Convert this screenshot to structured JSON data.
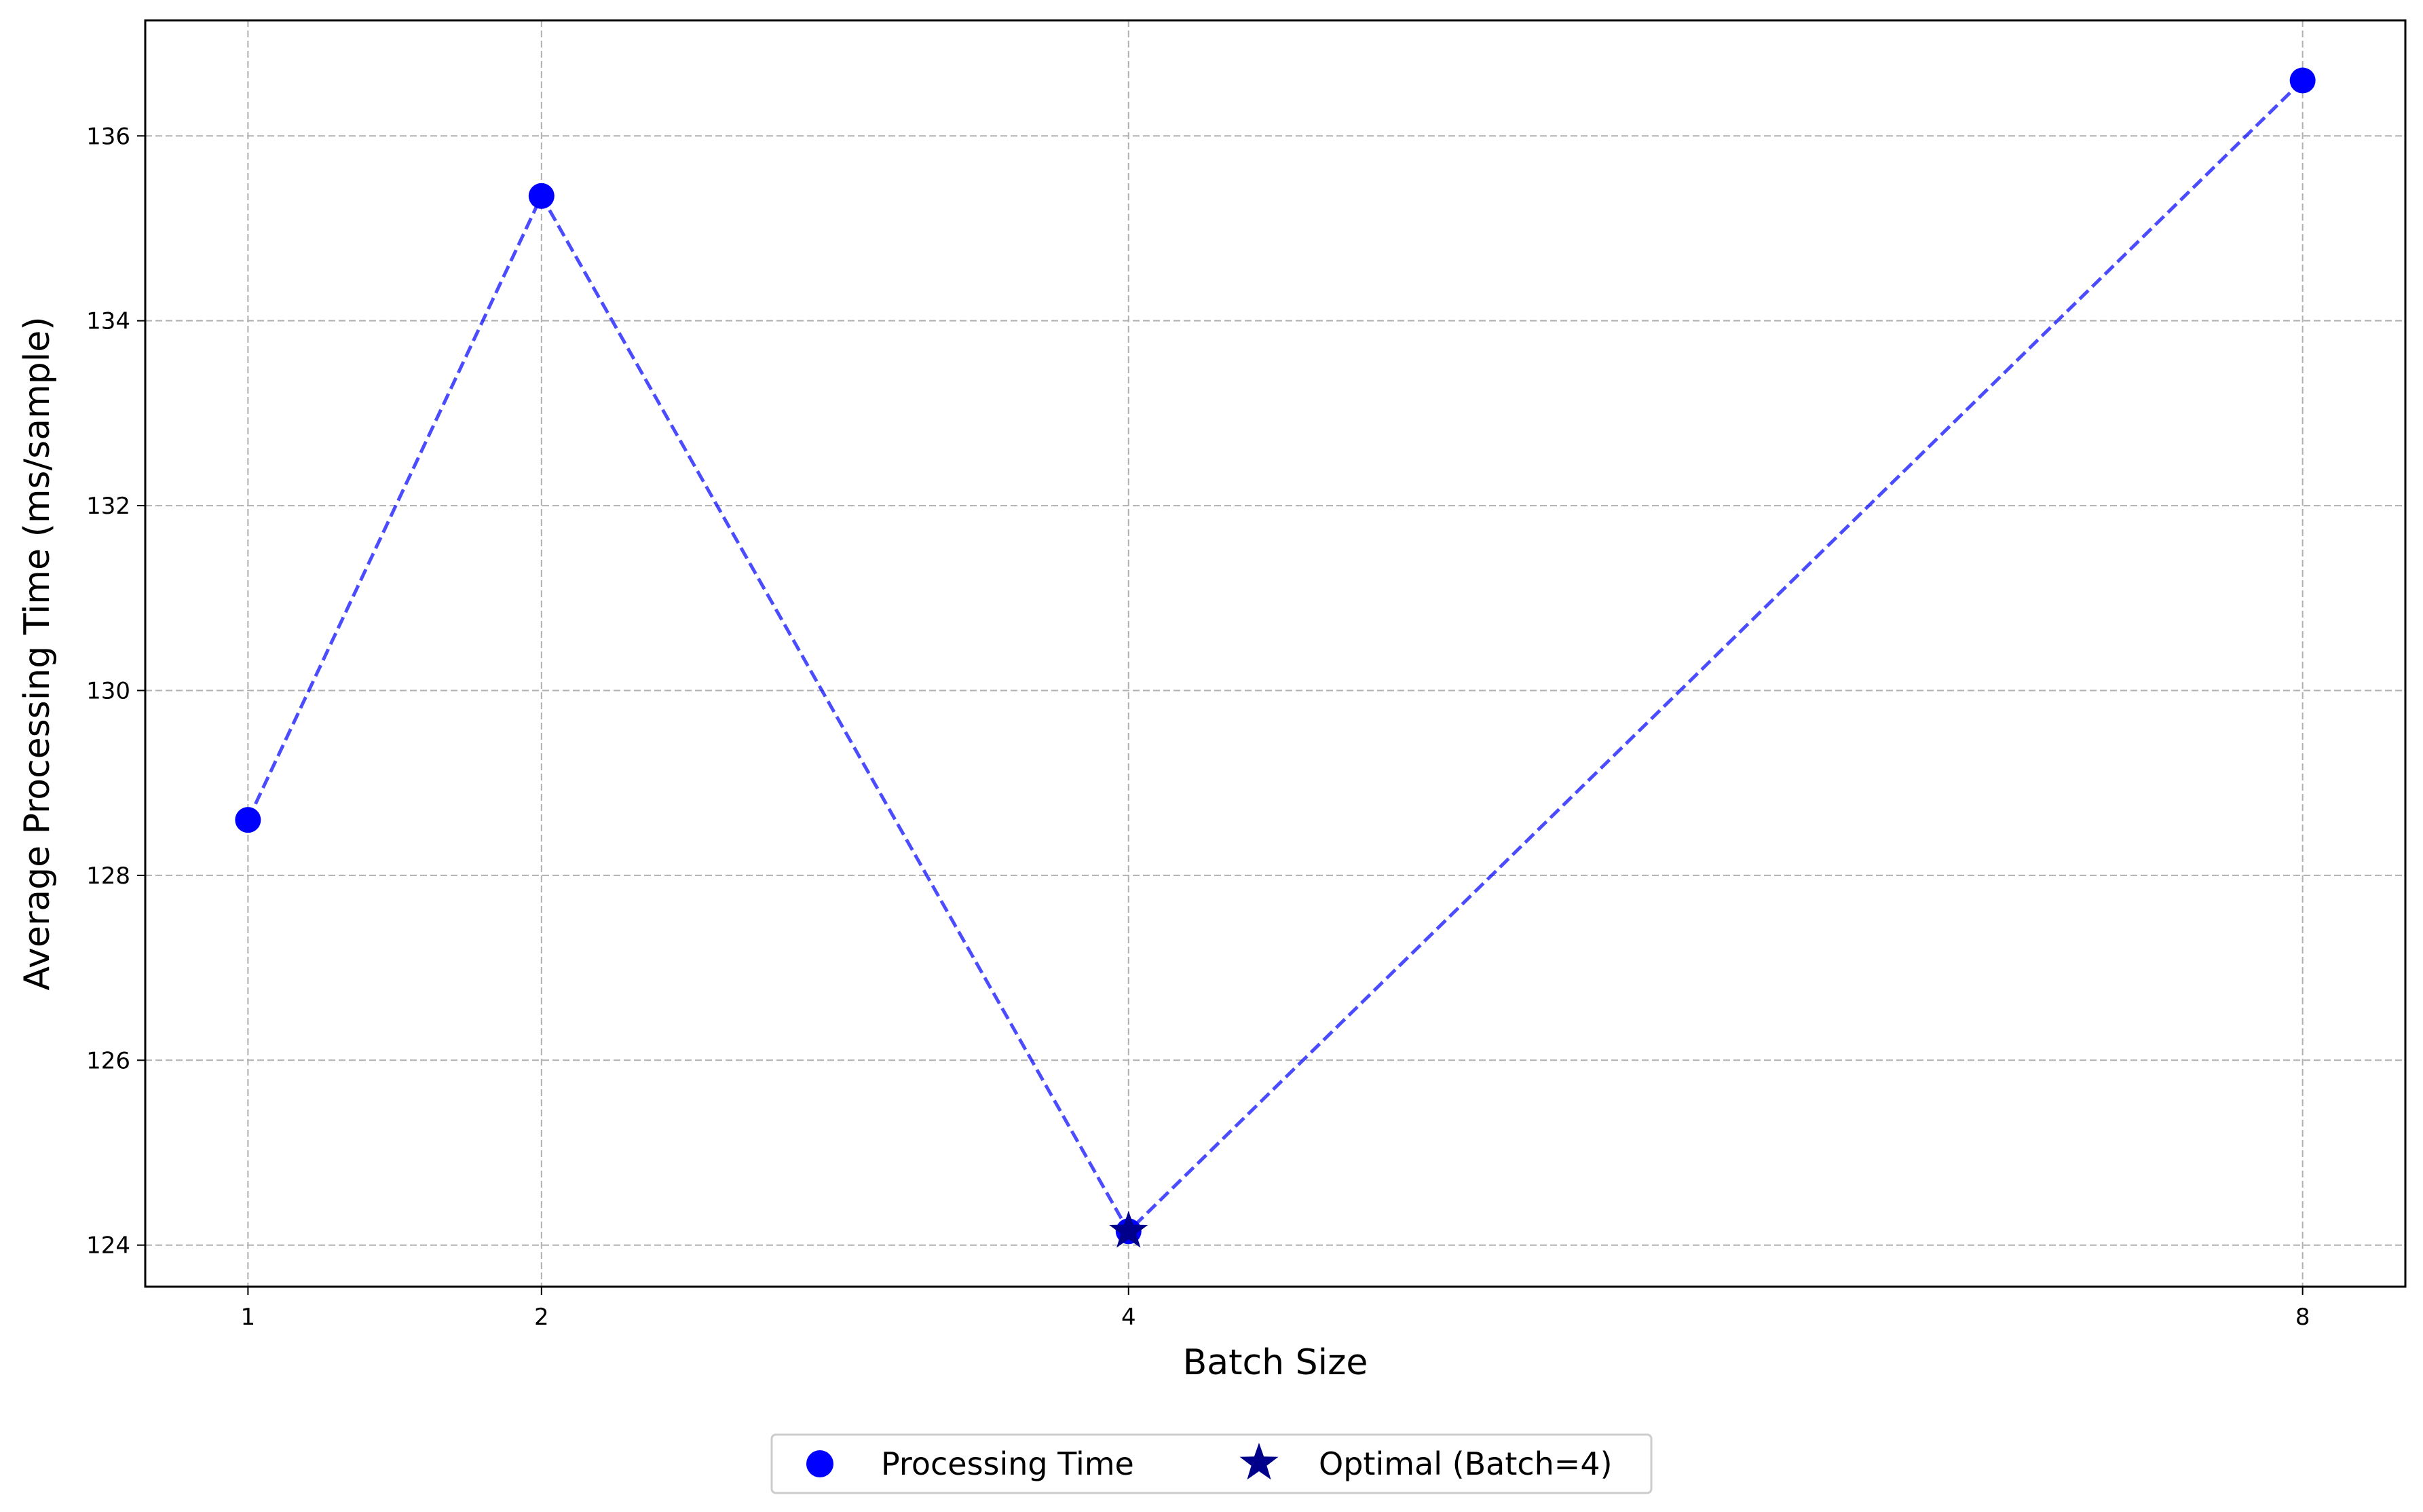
{
  "chart_data": {
    "type": "line",
    "title": "",
    "xlabel": "Batch Size",
    "ylabel": "Average Processing Time (ms/sample)",
    "x": [
      1,
      2,
      4,
      8
    ],
    "x_tick_labels": [
      "1",
      "2",
      "4",
      "8"
    ],
    "xlim": [
      0.65,
      8.35
    ],
    "ylim": [
      123.55,
      137.25
    ],
    "y_ticks": [
      124,
      126,
      128,
      130,
      132,
      134,
      136
    ],
    "y_tick_labels": [
      "124",
      "126",
      "128",
      "130",
      "132",
      "134",
      "136"
    ],
    "grid": true,
    "legend_position": "bottom-center",
    "series": [
      {
        "name": "Processing Time",
        "marker": "circle",
        "line_style": "dashed",
        "color": "#0000ff",
        "values": [
          128.6,
          135.35,
          124.15,
          136.6
        ]
      }
    ],
    "highlight": {
      "name": "Optimal (Batch=4)",
      "marker": "star",
      "color": "#00008b",
      "x": 4,
      "y": 124.15
    }
  }
}
